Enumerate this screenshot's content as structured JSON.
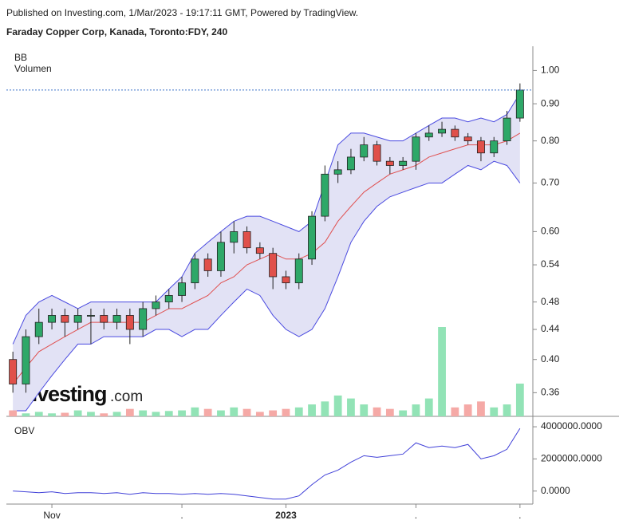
{
  "header": {
    "published": "Published on Investing.com, 1/Mar/2023 - 19:17:11 GMT, Powered by TradingView.",
    "symbol": "Faraday Copper Corp, Kanada, Toronto:FDY, 240"
  },
  "watermark": {
    "brand": "Investing",
    "suffix": ".com"
  },
  "chart_data": [
    {
      "type": "candlestick",
      "indicator_labels": [
        "BB",
        "Volumen"
      ],
      "log_scale": true,
      "ylim": [
        0.334,
        1.08
      ],
      "yticks": [
        {
          "value": 1.0,
          "label": "1.00"
        },
        {
          "value": 0.9,
          "label": "0.90"
        },
        {
          "value": 0.8,
          "label": "0.80"
        },
        {
          "value": 0.7,
          "label": "0.70"
        },
        {
          "value": 0.6,
          "label": "0.60"
        },
        0.54,
        0.48,
        0.44,
        {
          "value": 0.4,
          "label": "0.40"
        },
        0.36
      ],
      "xticks": [
        {
          "value": 3,
          "label": "Nov"
        },
        {
          "value": 13,
          "label": "."
        },
        {
          "value": 21,
          "label": "2023"
        },
        {
          "value": 31,
          "label": "."
        },
        {
          "value": 39,
          "label": "."
        }
      ],
      "up_color": "#2ea868",
      "down_color": "#e0504a",
      "band_color": "#4a4ae0",
      "band_fill": "#e2e2f5",
      "middle_color": "#e05050",
      "open": [
        0.4,
        0.37,
        0.43,
        0.45,
        0.46,
        0.45,
        0.46,
        0.46,
        0.45,
        0.46,
        0.44,
        0.47,
        0.48,
        0.49,
        0.51,
        0.55,
        0.53,
        0.58,
        0.6,
        0.57,
        0.56,
        0.52,
        0.51,
        0.55,
        0.63,
        0.72,
        0.73,
        0.76,
        0.79,
        0.75,
        0.74,
        0.75,
        0.81,
        0.82,
        0.83,
        0.81,
        0.8,
        0.77,
        0.8,
        0.86
      ],
      "high": [
        0.41,
        0.44,
        0.47,
        0.47,
        0.47,
        0.47,
        0.47,
        0.47,
        0.47,
        0.47,
        0.48,
        0.49,
        0.5,
        0.52,
        0.56,
        0.56,
        0.6,
        0.62,
        0.61,
        0.58,
        0.57,
        0.53,
        0.56,
        0.64,
        0.74,
        0.75,
        0.78,
        0.81,
        0.8,
        0.76,
        0.76,
        0.82,
        0.84,
        0.85,
        0.84,
        0.82,
        0.81,
        0.81,
        0.88,
        0.96
      ],
      "low": [
        0.36,
        0.36,
        0.42,
        0.44,
        0.43,
        0.44,
        0.42,
        0.44,
        0.44,
        0.42,
        0.43,
        0.46,
        0.47,
        0.48,
        0.5,
        0.52,
        0.52,
        0.56,
        0.56,
        0.55,
        0.5,
        0.5,
        0.5,
        0.54,
        0.62,
        0.7,
        0.72,
        0.75,
        0.74,
        0.72,
        0.73,
        0.73,
        0.8,
        0.81,
        0.8,
        0.79,
        0.75,
        0.76,
        0.79,
        0.85
      ],
      "close": [
        0.37,
        0.43,
        0.45,
        0.46,
        0.45,
        0.46,
        0.46,
        0.45,
        0.46,
        0.44,
        0.47,
        0.48,
        0.49,
        0.51,
        0.55,
        0.53,
        0.58,
        0.6,
        0.57,
        0.56,
        0.52,
        0.51,
        0.55,
        0.63,
        0.72,
        0.73,
        0.76,
        0.79,
        0.75,
        0.74,
        0.75,
        0.81,
        0.82,
        0.83,
        0.81,
        0.8,
        0.77,
        0.8,
        0.86,
        0.94
      ],
      "bb_upper": [
        0.42,
        0.46,
        0.48,
        0.49,
        0.48,
        0.47,
        0.48,
        0.48,
        0.48,
        0.48,
        0.48,
        0.48,
        0.5,
        0.52,
        0.56,
        0.58,
        0.6,
        0.62,
        0.63,
        0.63,
        0.62,
        0.61,
        0.6,
        0.62,
        0.7,
        0.79,
        0.82,
        0.82,
        0.81,
        0.8,
        0.8,
        0.82,
        0.84,
        0.86,
        0.86,
        0.85,
        0.86,
        0.85,
        0.87,
        0.93
      ],
      "bb_middle": [
        0.37,
        0.39,
        0.41,
        0.42,
        0.43,
        0.44,
        0.45,
        0.45,
        0.45,
        0.45,
        0.45,
        0.46,
        0.47,
        0.47,
        0.48,
        0.49,
        0.51,
        0.52,
        0.54,
        0.55,
        0.56,
        0.55,
        0.55,
        0.56,
        0.58,
        0.62,
        0.65,
        0.68,
        0.7,
        0.72,
        0.73,
        0.74,
        0.76,
        0.77,
        0.78,
        0.79,
        0.79,
        0.79,
        0.8,
        0.82
      ],
      "bb_lower": [
        0.34,
        0.34,
        0.36,
        0.38,
        0.4,
        0.42,
        0.42,
        0.43,
        0.43,
        0.43,
        0.43,
        0.44,
        0.44,
        0.43,
        0.44,
        0.44,
        0.46,
        0.48,
        0.5,
        0.49,
        0.46,
        0.44,
        0.43,
        0.44,
        0.47,
        0.52,
        0.58,
        0.62,
        0.65,
        0.67,
        0.68,
        0.69,
        0.7,
        0.7,
        0.72,
        0.74,
        0.73,
        0.75,
        0.74,
        0.7
      ],
      "volume": [
        20,
        10,
        15,
        10,
        12,
        20,
        15,
        10,
        15,
        25,
        20,
        15,
        18,
        20,
        30,
        25,
        20,
        30,
        25,
        15,
        20,
        25,
        30,
        40,
        50,
        70,
        60,
        40,
        30,
        25,
        20,
        40,
        60,
        300,
        30,
        40,
        50,
        30,
        40,
        110
      ]
    },
    {
      "type": "line",
      "title": "OBV",
      "color": "#4040d8",
      "ylim": [
        -810000,
        4500000
      ],
      "yticks": [
        {
          "value": 4000000,
          "label": "4000000.0000"
        },
        {
          "value": 2000000,
          "label": "2000000.0000"
        },
        {
          "value": 0,
          "label": "0.0000"
        }
      ],
      "values": [
        0,
        -50000,
        -100000,
        -50000,
        -150000,
        -100000,
        -100000,
        -150000,
        -100000,
        -200000,
        -100000,
        -150000,
        -150000,
        -200000,
        -150000,
        -200000,
        -150000,
        -200000,
        -300000,
        -400000,
        -500000,
        -500000,
        -300000,
        400000,
        1000000,
        1300000,
        1800000,
        2200000,
        2100000,
        2200000,
        2300000,
        3000000,
        2700000,
        2800000,
        2700000,
        2900000,
        2000000,
        2200000,
        2600000,
        3900000
      ]
    }
  ]
}
